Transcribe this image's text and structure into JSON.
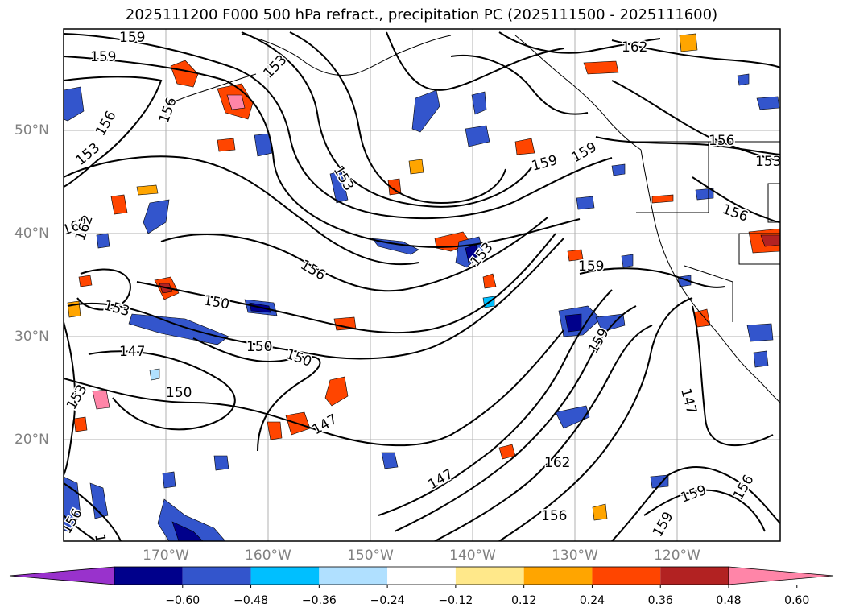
{
  "title": "2025111200 F000 500 hPa refract., precipitation PC (2025111500 - 2025111600)",
  "lat_labels": [
    "50°N",
    "40°N",
    "30°N",
    "20°N"
  ],
  "lon_labels": [
    "170°W",
    "160°W",
    "150°W",
    "140°W",
    "130°W",
    "120°W"
  ],
  "contour_labels": [
    "159",
    "159",
    "153",
    "156",
    "156",
    "153",
    "153",
    "162",
    "162",
    "156",
    "150",
    "153",
    "147",
    "150",
    "150",
    "150",
    "147",
    "159",
    "159",
    "153",
    "159",
    "162",
    "156",
    "156",
    "153",
    "153",
    "159",
    "162",
    "147",
    "147",
    "156",
    "159",
    "159",
    "147",
    "156",
    "156"
  ],
  "colorbar": {
    "ticks": [
      "−0.60",
      "−0.48",
      "−0.36",
      "−0.24",
      "−0.12",
      "0.12",
      "0.24",
      "0.36",
      "0.48",
      "0.60"
    ],
    "colors": [
      "#9932cc",
      "#00008b",
      "#3355cc",
      "#00bfff",
      "#b0e0ff",
      "#ffffff",
      "#ffe88a",
      "#ffa500",
      "#ff4500",
      "#b22222",
      "#ff85a8"
    ]
  }
}
